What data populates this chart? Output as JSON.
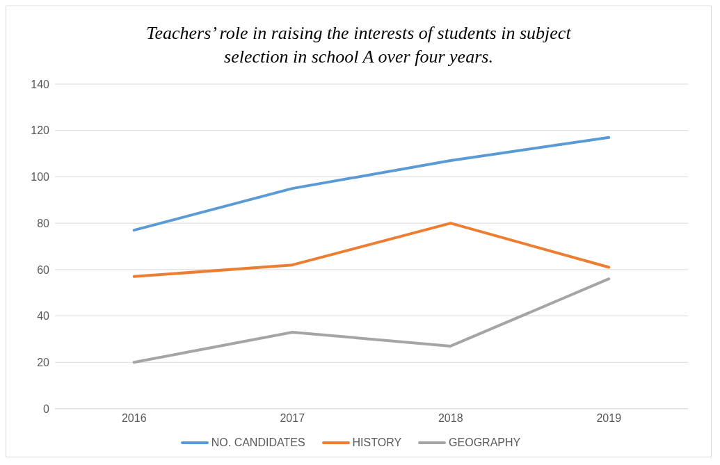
{
  "chart_data": {
    "type": "line",
    "title": "Teachers’ role in raising the interests of students in subject selection in school A over four years.",
    "categories": [
      "2016",
      "2017",
      "2018",
      "2019"
    ],
    "series": [
      {
        "name": "NO. CANDIDATES",
        "color": "#5b9bd5",
        "values": [
          77,
          95,
          107,
          117
        ]
      },
      {
        "name": "HISTORY",
        "color": "#ed7d31",
        "values": [
          57,
          62,
          80,
          61
        ]
      },
      {
        "name": "GEOGRAPHY",
        "color": "#a5a5a5",
        "values": [
          20,
          33,
          27,
          56
        ]
      }
    ],
    "ylim": [
      0,
      140
    ],
    "yticks": [
      0,
      20,
      40,
      60,
      80,
      100,
      120,
      140
    ],
    "grid": "y",
    "legend": "bottom",
    "marker": "none",
    "line_style": "solid"
  }
}
